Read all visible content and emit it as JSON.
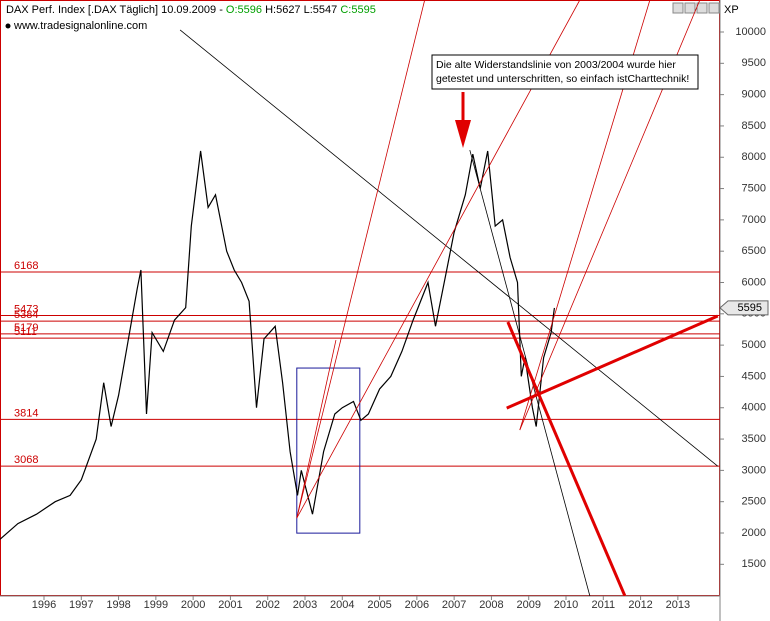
{
  "chart_data": {
    "type": "line",
    "title": "DAX Perf. Index [.DAX  Täglich] 10.09.2009 -",
    "ohlc": [
      {
        "text": "O:5596",
        "color": "#00a000"
      },
      {
        "text": "H:5627",
        "color": "#000000"
      },
      {
        "text": "L:5547",
        "color": "#000000"
      },
      {
        "text": "C:5595",
        "color": "#00a000"
      }
    ],
    "source": "www.tradesignalonline.com",
    "scale_label": "XP",
    "annotation": [
      "Die alte Widerstandslinie von 2003/2004 wurde hier",
      "getestet und unterschritten, so einfach istCharttechnik!"
    ],
    "xlim": [
      1994.82,
      2014.13
    ],
    "xticks": [
      1996,
      1997,
      1998,
      1999,
      2000,
      2001,
      2002,
      2003,
      2004,
      2005,
      2006,
      2007,
      2008,
      2009,
      2010,
      2011,
      2012,
      2013
    ],
    "ylim": [
      994,
      10511
    ],
    "yticks": [
      1500,
      2000,
      2500,
      3000,
      3500,
      4000,
      4500,
      5000,
      5500,
      6000,
      6500,
      7000,
      7500,
      8000,
      8500,
      9000,
      9500,
      10000
    ],
    "last_price": 5595,
    "series": [
      {
        "name": "DAX",
        "color": "#000000",
        "x": [
          1994.82,
          1995.3,
          1995.8,
          1996.3,
          1996.7,
          1997.0,
          1997.4,
          1997.6,
          1997.8,
          1998.0,
          1998.5,
          1998.6,
          1998.75,
          1998.9,
          1999.2,
          1999.5,
          1999.8,
          1999.95,
          2000.2,
          2000.4,
          2000.6,
          2000.9,
          2001.1,
          2001.3,
          2001.5,
          2001.7,
          2001.9,
          2002.2,
          2002.4,
          2002.6,
          2002.8,
          2002.9,
          2003.2,
          2003.5,
          2003.8,
          2004.0,
          2004.3,
          2004.5,
          2004.7,
          2005.0,
          2005.3,
          2005.6,
          2005.9,
          2006.3,
          2006.5,
          2006.8,
          2007.0,
          2007.3,
          2007.5,
          2007.7,
          2007.9,
          2008.1,
          2008.3,
          2008.5,
          2008.7,
          2008.8,
          2008.9,
          2009.1,
          2009.2,
          2009.4,
          2009.6,
          2009.69
        ],
        "values": [
          1900,
          2150,
          2300,
          2500,
          2600,
          2850,
          3500,
          4400,
          3700,
          4200,
          5900,
          6200,
          3900,
          5200,
          4900,
          5400,
          5600,
          6900,
          8100,
          7200,
          7400,
          6500,
          6200,
          6000,
          5700,
          4000,
          5100,
          5300,
          4400,
          3300,
          2600,
          3000,
          2300,
          3300,
          3900,
          4000,
          4100,
          3800,
          3900,
          4300,
          4500,
          4900,
          5400,
          6000,
          5300,
          6200,
          6800,
          7400,
          8050,
          7500,
          8100,
          6900,
          7000,
          6400,
          6000,
          4500,
          4800,
          4000,
          3700,
          4800,
          5200,
          5595
        ]
      }
    ],
    "levels": [
      {
        "value": 6168,
        "color": "#cc0000"
      },
      {
        "value": 5473,
        "color": "#cc0000"
      },
      {
        "value": 5384,
        "color": "#cc0000"
      },
      {
        "value": 5179,
        "color": "#cc0000"
      },
      {
        "value": 5111,
        "color": "#cc0000"
      },
      {
        "value": 3814,
        "color": "#cc0000"
      },
      {
        "value": 3068,
        "color": "#cc0000"
      }
    ],
    "trendlines": [
      {
        "x": [
          1999.65,
          2014.07
        ],
        "y": [
          10032,
          3067
        ],
        "color": "#000000",
        "width": 0.8
      },
      {
        "x": [
          2007.42,
          2010.64
        ],
        "y": [
          8115,
          994
        ],
        "color": "#000000",
        "width": 0.8
      },
      {
        "x": [
          2002.78,
          2006.21
        ],
        "y": [
          2238,
          10511
        ],
        "color": "#cc0000",
        "width": 0.8
      },
      {
        "x": [
          2002.78,
          2010.37
        ],
        "y": [
          2238,
          10511
        ],
        "color": "#cc0000",
        "width": 0.8
      },
      {
        "x": [
          2002.78,
          2003.83
        ],
        "y": [
          2238,
          5081
        ],
        "color": "#cc0000",
        "width": 0.8
      },
      {
        "x": [
          2008.76,
          2012.25
        ],
        "y": [
          3644,
          10511
        ],
        "color": "#cc0000",
        "width": 0.8
      },
      {
        "x": [
          2008.76,
          2013.59
        ],
        "y": [
          3644,
          10511
        ],
        "color": "#cc0000",
        "width": 0.8
      },
      {
        "x": [
          2008.41,
          2014.07
        ],
        "y": [
          3995,
          5465
        ],
        "color": "#e00000",
        "width": 3
      },
      {
        "x": [
          2008.44,
          2011.58
        ],
        "y": [
          5369,
          994
        ],
        "color": "#e00000",
        "width": 3
      }
    ],
    "box": {
      "x": [
        2002.78,
        2004.47
      ],
      "y": [
        1998,
        4634
      ],
      "color": "#1a1a9a"
    }
  }
}
